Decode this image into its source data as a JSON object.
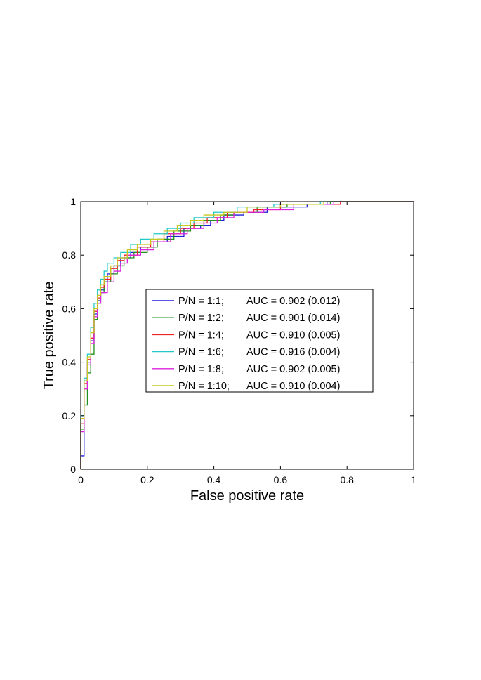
{
  "chart_data": {
    "type": "line",
    "title": "",
    "xlabel": "False positive rate",
    "ylabel": "True positive rate",
    "xlim": [
      0,
      1
    ],
    "ylim": [
      0,
      1
    ],
    "x_ticks": [
      "0",
      "0.2",
      "0.4",
      "0.6",
      "0.8",
      "1"
    ],
    "y_ticks": [
      "0",
      "0.2",
      "0.4",
      "0.6",
      "0.8",
      "1"
    ],
    "grid": false,
    "legend_position": "center",
    "series": [
      {
        "name": "P/N = 1:1;",
        "auc_label": "AUC = 0.902 (0.012)",
        "color": "#1f1fd6",
        "points": [
          [
            0,
            0
          ],
          [
            0,
            0.05
          ],
          [
            0.01,
            0.05
          ],
          [
            0.01,
            0.33
          ],
          [
            0.02,
            0.33
          ],
          [
            0.02,
            0.4
          ],
          [
            0.03,
            0.4
          ],
          [
            0.03,
            0.48
          ],
          [
            0.04,
            0.48
          ],
          [
            0.04,
            0.58
          ],
          [
            0.05,
            0.58
          ],
          [
            0.05,
            0.63
          ],
          [
            0.06,
            0.63
          ],
          [
            0.06,
            0.67
          ],
          [
            0.07,
            0.67
          ],
          [
            0.07,
            0.7
          ],
          [
            0.08,
            0.7
          ],
          [
            0.08,
            0.73
          ],
          [
            0.1,
            0.73
          ],
          [
            0.1,
            0.76
          ],
          [
            0.12,
            0.76
          ],
          [
            0.12,
            0.79
          ],
          [
            0.15,
            0.79
          ],
          [
            0.15,
            0.81
          ],
          [
            0.18,
            0.81
          ],
          [
            0.18,
            0.83
          ],
          [
            0.22,
            0.83
          ],
          [
            0.22,
            0.85
          ],
          [
            0.26,
            0.85
          ],
          [
            0.26,
            0.87
          ],
          [
            0.31,
            0.87
          ],
          [
            0.31,
            0.9
          ],
          [
            0.36,
            0.9
          ],
          [
            0.36,
            0.91
          ],
          [
            0.39,
            0.91
          ],
          [
            0.39,
            0.93
          ],
          [
            0.43,
            0.93
          ],
          [
            0.43,
            0.95
          ],
          [
            0.49,
            0.95
          ],
          [
            0.49,
            0.96
          ],
          [
            0.56,
            0.96
          ],
          [
            0.56,
            0.98
          ],
          [
            0.68,
            0.98
          ],
          [
            0.68,
            0.99
          ],
          [
            0.74,
            0.99
          ],
          [
            0.74,
            1.0
          ],
          [
            1,
            1
          ]
        ]
      },
      {
        "name": "P/N = 1:2;",
        "auc_label": "AUC = 0.901 (0.014)",
        "color": "#1f8f1f",
        "points": [
          [
            0,
            0
          ],
          [
            0,
            0.15
          ],
          [
            0.01,
            0.15
          ],
          [
            0.01,
            0.24
          ],
          [
            0.02,
            0.24
          ],
          [
            0.02,
            0.36
          ],
          [
            0.03,
            0.36
          ],
          [
            0.03,
            0.43
          ],
          [
            0.04,
            0.43
          ],
          [
            0.04,
            0.56
          ],
          [
            0.05,
            0.56
          ],
          [
            0.05,
            0.62
          ],
          [
            0.06,
            0.62
          ],
          [
            0.06,
            0.66
          ],
          [
            0.07,
            0.66
          ],
          [
            0.07,
            0.7
          ],
          [
            0.09,
            0.7
          ],
          [
            0.09,
            0.73
          ],
          [
            0.11,
            0.73
          ],
          [
            0.11,
            0.76
          ],
          [
            0.13,
            0.76
          ],
          [
            0.13,
            0.79
          ],
          [
            0.16,
            0.79
          ],
          [
            0.16,
            0.81
          ],
          [
            0.2,
            0.81
          ],
          [
            0.2,
            0.83
          ],
          [
            0.23,
            0.83
          ],
          [
            0.23,
            0.86
          ],
          [
            0.28,
            0.86
          ],
          [
            0.28,
            0.89
          ],
          [
            0.33,
            0.89
          ],
          [
            0.33,
            0.91
          ],
          [
            0.37,
            0.91
          ],
          [
            0.37,
            0.93
          ],
          [
            0.42,
            0.93
          ],
          [
            0.42,
            0.95
          ],
          [
            0.46,
            0.95
          ],
          [
            0.46,
            0.96
          ],
          [
            0.53,
            0.96
          ],
          [
            0.53,
            0.98
          ],
          [
            0.62,
            0.98
          ],
          [
            0.62,
            0.99
          ],
          [
            0.75,
            0.99
          ],
          [
            0.75,
            1.0
          ],
          [
            1,
            1
          ]
        ]
      },
      {
        "name": "P/N = 1:4;",
        "auc_label": "AUC = 0.910 (0.005)",
        "color": "#ee2222",
        "points": [
          [
            0,
            0
          ],
          [
            0,
            0.17
          ],
          [
            0.01,
            0.17
          ],
          [
            0.01,
            0.32
          ],
          [
            0.02,
            0.32
          ],
          [
            0.02,
            0.41
          ],
          [
            0.03,
            0.41
          ],
          [
            0.03,
            0.49
          ],
          [
            0.04,
            0.49
          ],
          [
            0.04,
            0.59
          ],
          [
            0.05,
            0.59
          ],
          [
            0.05,
            0.64
          ],
          [
            0.06,
            0.64
          ],
          [
            0.06,
            0.68
          ],
          [
            0.07,
            0.68
          ],
          [
            0.07,
            0.71
          ],
          [
            0.09,
            0.71
          ],
          [
            0.09,
            0.75
          ],
          [
            0.11,
            0.75
          ],
          [
            0.11,
            0.78
          ],
          [
            0.13,
            0.78
          ],
          [
            0.13,
            0.8
          ],
          [
            0.17,
            0.8
          ],
          [
            0.17,
            0.83
          ],
          [
            0.21,
            0.83
          ],
          [
            0.21,
            0.85
          ],
          [
            0.25,
            0.85
          ],
          [
            0.25,
            0.88
          ],
          [
            0.3,
            0.88
          ],
          [
            0.3,
            0.9
          ],
          [
            0.34,
            0.9
          ],
          [
            0.34,
            0.92
          ],
          [
            0.38,
            0.92
          ],
          [
            0.38,
            0.94
          ],
          [
            0.44,
            0.94
          ],
          [
            0.44,
            0.96
          ],
          [
            0.52,
            0.96
          ],
          [
            0.52,
            0.97
          ],
          [
            0.6,
            0.97
          ],
          [
            0.6,
            0.99
          ],
          [
            0.78,
            0.99
          ],
          [
            0.78,
            1.0
          ],
          [
            1,
            1
          ]
        ]
      },
      {
        "name": "P/N = 1:6;",
        "auc_label": "AUC = 0.916 (0.004)",
        "color": "#22c8c8",
        "points": [
          [
            0,
            0
          ],
          [
            0,
            0.2
          ],
          [
            0.01,
            0.2
          ],
          [
            0.01,
            0.34
          ],
          [
            0.02,
            0.34
          ],
          [
            0.02,
            0.43
          ],
          [
            0.03,
            0.43
          ],
          [
            0.03,
            0.53
          ],
          [
            0.04,
            0.53
          ],
          [
            0.04,
            0.62
          ],
          [
            0.05,
            0.62
          ],
          [
            0.05,
            0.67
          ],
          [
            0.06,
            0.67
          ],
          [
            0.06,
            0.71
          ],
          [
            0.07,
            0.71
          ],
          [
            0.07,
            0.74
          ],
          [
            0.08,
            0.74
          ],
          [
            0.08,
            0.77
          ],
          [
            0.1,
            0.77
          ],
          [
            0.1,
            0.79
          ],
          [
            0.12,
            0.79
          ],
          [
            0.12,
            0.81
          ],
          [
            0.15,
            0.81
          ],
          [
            0.15,
            0.84
          ],
          [
            0.18,
            0.84
          ],
          [
            0.18,
            0.86
          ],
          [
            0.22,
            0.86
          ],
          [
            0.22,
            0.88
          ],
          [
            0.26,
            0.88
          ],
          [
            0.26,
            0.9
          ],
          [
            0.3,
            0.9
          ],
          [
            0.3,
            0.92
          ],
          [
            0.34,
            0.92
          ],
          [
            0.34,
            0.94
          ],
          [
            0.4,
            0.94
          ],
          [
            0.4,
            0.96
          ],
          [
            0.47,
            0.96
          ],
          [
            0.47,
            0.98
          ],
          [
            0.58,
            0.98
          ],
          [
            0.58,
            0.99
          ],
          [
            0.72,
            0.99
          ],
          [
            0.72,
            1.0
          ],
          [
            1,
            1
          ]
        ]
      },
      {
        "name": "P/N = 1:8;",
        "auc_label": "AUC = 0.902 (0.005)",
        "color": "#dd22dd",
        "points": [
          [
            0,
            0
          ],
          [
            0,
            0.14
          ],
          [
            0.01,
            0.14
          ],
          [
            0.01,
            0.3
          ],
          [
            0.02,
            0.3
          ],
          [
            0.02,
            0.39
          ],
          [
            0.03,
            0.39
          ],
          [
            0.03,
            0.47
          ],
          [
            0.04,
            0.47
          ],
          [
            0.04,
            0.57
          ],
          [
            0.05,
            0.57
          ],
          [
            0.05,
            0.62
          ],
          [
            0.06,
            0.62
          ],
          [
            0.06,
            0.66
          ],
          [
            0.08,
            0.66
          ],
          [
            0.08,
            0.7
          ],
          [
            0.1,
            0.7
          ],
          [
            0.1,
            0.74
          ],
          [
            0.12,
            0.74
          ],
          [
            0.12,
            0.77
          ],
          [
            0.14,
            0.77
          ],
          [
            0.14,
            0.8
          ],
          [
            0.18,
            0.8
          ],
          [
            0.18,
            0.82
          ],
          [
            0.22,
            0.82
          ],
          [
            0.22,
            0.85
          ],
          [
            0.27,
            0.85
          ],
          [
            0.27,
            0.88
          ],
          [
            0.32,
            0.88
          ],
          [
            0.32,
            0.9
          ],
          [
            0.37,
            0.9
          ],
          [
            0.37,
            0.92
          ],
          [
            0.41,
            0.92
          ],
          [
            0.41,
            0.94
          ],
          [
            0.46,
            0.94
          ],
          [
            0.46,
            0.96
          ],
          [
            0.55,
            0.96
          ],
          [
            0.55,
            0.97
          ],
          [
            0.64,
            0.97
          ],
          [
            0.64,
            0.99
          ],
          [
            0.76,
            0.99
          ],
          [
            0.76,
            1.0
          ],
          [
            1,
            1
          ]
        ]
      },
      {
        "name": "P/N = 1:10;",
        "auc_label": "AUC = 0.910 (0.004)",
        "color": "#c8c81e",
        "points": [
          [
            0,
            0
          ],
          [
            0,
            0.19
          ],
          [
            0.01,
            0.19
          ],
          [
            0.01,
            0.33
          ],
          [
            0.02,
            0.33
          ],
          [
            0.02,
            0.42
          ],
          [
            0.03,
            0.42
          ],
          [
            0.03,
            0.51
          ],
          [
            0.04,
            0.51
          ],
          [
            0.04,
            0.6
          ],
          [
            0.05,
            0.6
          ],
          [
            0.05,
            0.65
          ],
          [
            0.06,
            0.65
          ],
          [
            0.06,
            0.69
          ],
          [
            0.07,
            0.69
          ],
          [
            0.07,
            0.72
          ],
          [
            0.09,
            0.72
          ],
          [
            0.09,
            0.76
          ],
          [
            0.11,
            0.76
          ],
          [
            0.11,
            0.79
          ],
          [
            0.14,
            0.79
          ],
          [
            0.14,
            0.82
          ],
          [
            0.17,
            0.82
          ],
          [
            0.17,
            0.84
          ],
          [
            0.21,
            0.84
          ],
          [
            0.21,
            0.86
          ],
          [
            0.25,
            0.86
          ],
          [
            0.25,
            0.89
          ],
          [
            0.29,
            0.89
          ],
          [
            0.29,
            0.91
          ],
          [
            0.33,
            0.91
          ],
          [
            0.33,
            0.93
          ],
          [
            0.37,
            0.93
          ],
          [
            0.37,
            0.95
          ],
          [
            0.43,
            0.95
          ],
          [
            0.43,
            0.96
          ],
          [
            0.5,
            0.96
          ],
          [
            0.5,
            0.98
          ],
          [
            0.6,
            0.98
          ],
          [
            0.6,
            0.99
          ],
          [
            0.73,
            0.99
          ],
          [
            0.73,
            1.0
          ],
          [
            1,
            1
          ]
        ]
      }
    ]
  }
}
